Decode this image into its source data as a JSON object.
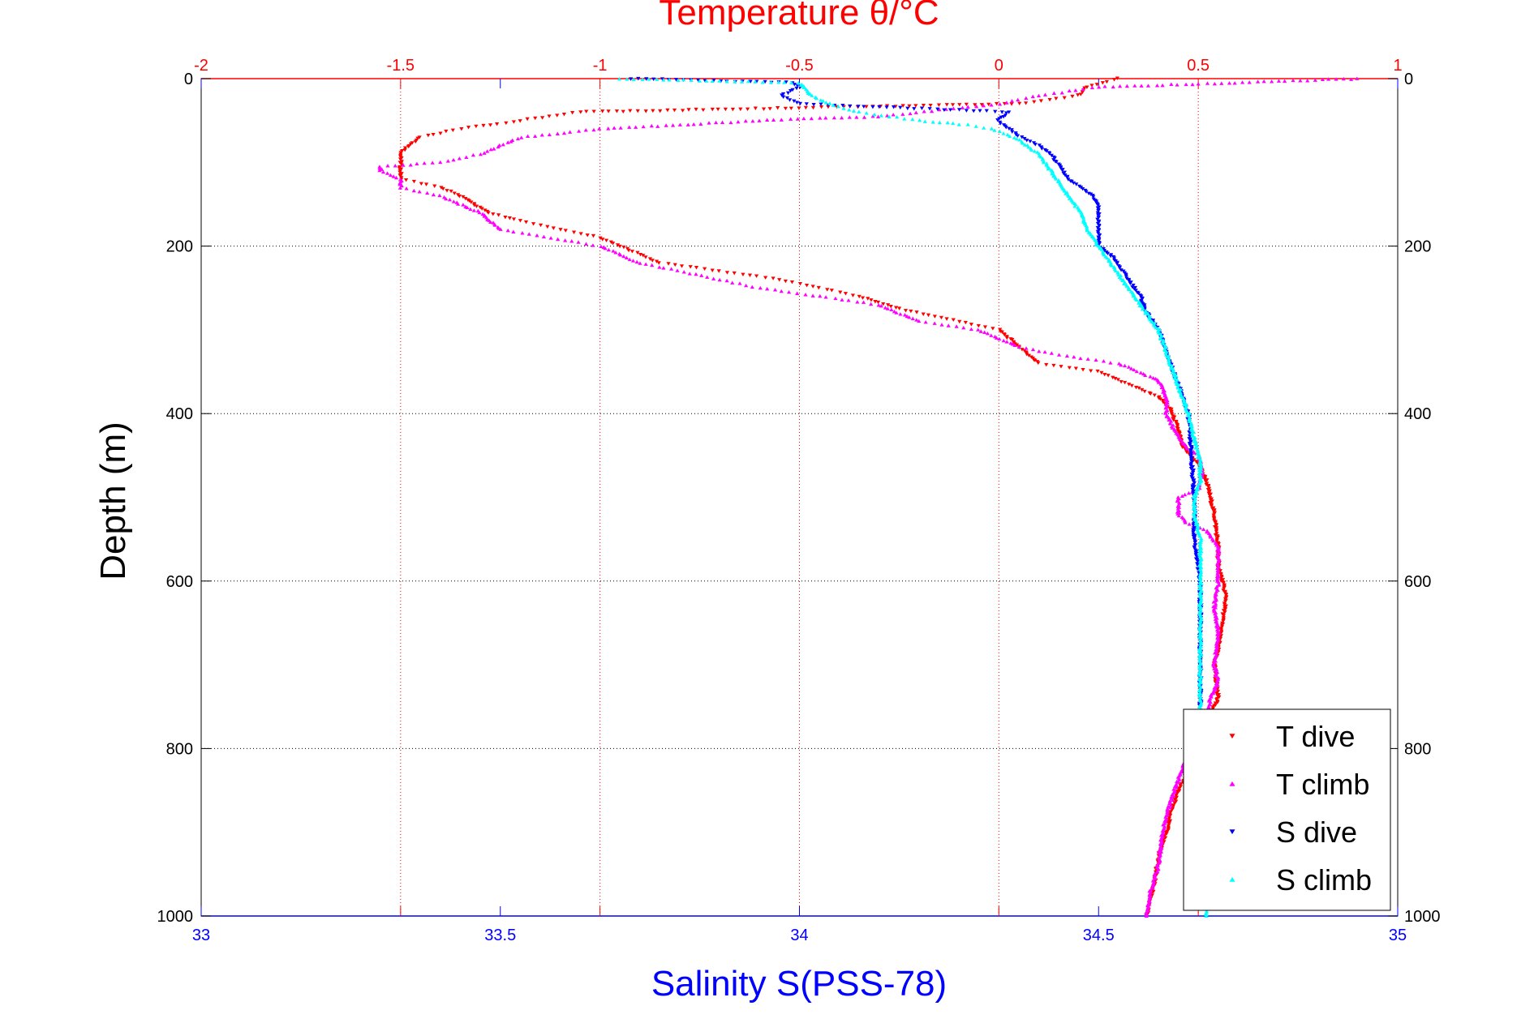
{
  "chart_data": {
    "type": "scatter",
    "title": "",
    "top_axis": {
      "label": "Temperature θ/°C",
      "range": [
        -2,
        1
      ],
      "ticks": [
        -2,
        -1.5,
        -1,
        -0.5,
        0,
        0.5,
        1
      ],
      "tick_labels": [
        "-2",
        "-1.5",
        "-1",
        "-0.5",
        "0",
        "0.5",
        "1"
      ],
      "color": "#ff0000"
    },
    "bottom_axis": {
      "label": "Salinity S(PSS-78)",
      "range": [
        33,
        35
      ],
      "ticks": [
        33,
        33.5,
        34,
        34.5,
        35
      ],
      "tick_labels": [
        "33",
        "33.5",
        "34",
        "34.5",
        "35"
      ],
      "color": "#0000ff"
    },
    "y_axis": {
      "label": "Depth (m)",
      "range": [
        0,
        1000
      ],
      "reversed": true,
      "ticks": [
        0,
        200,
        400,
        600,
        800,
        1000
      ],
      "tick_labels": [
        "0",
        "200",
        "400",
        "600",
        "800",
        "1000"
      ],
      "color": "#000000"
    },
    "grid": true,
    "legend_position": "bottom-right",
    "series": [
      {
        "name": "T dive",
        "axis": "top",
        "color": "#ff0000",
        "marker": "triangle-down",
        "points": [
          [
            0.3,
            0
          ],
          [
            0.22,
            10
          ],
          [
            0.2,
            20
          ],
          [
            0.05,
            30
          ],
          [
            -0.5,
            35
          ],
          [
            -1.05,
            40
          ],
          [
            -1.2,
            50
          ],
          [
            -1.35,
            60
          ],
          [
            -1.45,
            70
          ],
          [
            -1.48,
            80
          ],
          [
            -1.5,
            90
          ],
          [
            -1.5,
            100
          ],
          [
            -1.5,
            110
          ],
          [
            -1.5,
            120
          ],
          [
            -1.45,
            125
          ],
          [
            -1.4,
            130
          ],
          [
            -1.35,
            140
          ],
          [
            -1.28,
            160
          ],
          [
            -1.2,
            170
          ],
          [
            -1.1,
            180
          ],
          [
            -1.0,
            190
          ],
          [
            -0.95,
            200
          ],
          [
            -0.9,
            210
          ],
          [
            -0.85,
            220
          ],
          [
            -0.7,
            230
          ],
          [
            -0.55,
            240
          ],
          [
            -0.45,
            250
          ],
          [
            -0.35,
            260
          ],
          [
            -0.25,
            275
          ],
          [
            -0.1,
            290
          ],
          [
            0.0,
            300
          ],
          [
            0.05,
            320
          ],
          [
            0.1,
            340
          ],
          [
            0.25,
            350
          ],
          [
            0.3,
            360
          ],
          [
            0.35,
            370
          ],
          [
            0.4,
            380
          ],
          [
            0.43,
            395
          ],
          [
            0.45,
            420
          ],
          [
            0.46,
            440
          ],
          [
            0.5,
            460
          ],
          [
            0.52,
            480
          ],
          [
            0.53,
            500
          ],
          [
            0.54,
            520
          ],
          [
            0.55,
            560
          ],
          [
            0.55,
            580
          ],
          [
            0.56,
            600
          ],
          [
            0.57,
            620
          ],
          [
            0.56,
            650
          ],
          [
            0.55,
            680
          ],
          [
            0.54,
            700
          ],
          [
            0.55,
            740
          ],
          [
            0.53,
            760
          ],
          [
            0.5,
            800
          ],
          [
            0.45,
            850
          ],
          [
            0.43,
            880
          ],
          [
            0.42,
            900
          ],
          [
            0.4,
            930
          ],
          [
            0.39,
            960
          ],
          [
            0.37,
            1000
          ]
        ]
      },
      {
        "name": "T climb",
        "axis": "top",
        "color": "#ff00ff",
        "marker": "triangle-up",
        "points": [
          [
            0.9,
            0
          ],
          [
            0.25,
            10
          ],
          [
            0.1,
            20
          ],
          [
            0.0,
            30
          ],
          [
            -0.3,
            45
          ],
          [
            -0.6,
            50
          ],
          [
            -1.0,
            60
          ],
          [
            -1.2,
            70
          ],
          [
            -1.25,
            80
          ],
          [
            -1.3,
            90
          ],
          [
            -1.4,
            100
          ],
          [
            -1.55,
            105
          ],
          [
            -1.55,
            110
          ],
          [
            -1.5,
            120
          ],
          [
            -1.5,
            130
          ],
          [
            -1.4,
            140
          ],
          [
            -1.3,
            160
          ],
          [
            -1.25,
            180
          ],
          [
            -1.0,
            200
          ],
          [
            -0.9,
            220
          ],
          [
            -0.7,
            240
          ],
          [
            -0.6,
            250
          ],
          [
            -0.45,
            260
          ],
          [
            -0.3,
            270
          ],
          [
            -0.2,
            290
          ],
          [
            -0.05,
            300
          ],
          [
            0.05,
            320
          ],
          [
            0.15,
            330
          ],
          [
            0.3,
            340
          ],
          [
            0.4,
            360
          ],
          [
            0.42,
            380
          ],
          [
            0.42,
            400
          ],
          [
            0.44,
            420
          ],
          [
            0.47,
            440
          ],
          [
            0.5,
            450
          ],
          [
            0.51,
            470
          ],
          [
            0.5,
            490
          ],
          [
            0.45,
            500
          ],
          [
            0.45,
            520
          ],
          [
            0.47,
            530
          ],
          [
            0.52,
            540
          ],
          [
            0.55,
            560
          ],
          [
            0.55,
            600
          ],
          [
            0.54,
            630
          ],
          [
            0.55,
            660
          ],
          [
            0.54,
            700
          ],
          [
            0.55,
            720
          ],
          [
            0.53,
            740
          ],
          [
            0.52,
            760
          ],
          [
            0.48,
            800
          ],
          [
            0.44,
            850
          ],
          [
            0.42,
            880
          ],
          [
            0.41,
            900
          ],
          [
            0.4,
            940
          ],
          [
            0.38,
            970
          ],
          [
            0.37,
            1000
          ]
        ]
      },
      {
        "name": "S dive",
        "axis": "bottom",
        "color": "#0000ff",
        "marker": "triangle-down",
        "points": [
          [
            33.72,
            0
          ],
          [
            33.99,
            5
          ],
          [
            34.0,
            10
          ],
          [
            33.97,
            20
          ],
          [
            34.0,
            30
          ],
          [
            34.35,
            40
          ],
          [
            34.33,
            50
          ],
          [
            34.35,
            60
          ],
          [
            34.37,
            70
          ],
          [
            34.4,
            80
          ],
          [
            34.42,
            90
          ],
          [
            34.43,
            100
          ],
          [
            34.44,
            110
          ],
          [
            34.45,
            120
          ],
          [
            34.47,
            130
          ],
          [
            34.49,
            140
          ],
          [
            34.5,
            150
          ],
          [
            34.5,
            160
          ],
          [
            34.5,
            170
          ],
          [
            34.5,
            180
          ],
          [
            34.5,
            200
          ],
          [
            34.52,
            210
          ],
          [
            34.53,
            220
          ],
          [
            34.54,
            230
          ],
          [
            34.55,
            240
          ],
          [
            34.56,
            250
          ],
          [
            34.57,
            260
          ],
          [
            34.58,
            280
          ],
          [
            34.6,
            300
          ],
          [
            34.61,
            320
          ],
          [
            34.62,
            340
          ],
          [
            34.63,
            360
          ],
          [
            34.64,
            380
          ],
          [
            34.65,
            400
          ],
          [
            34.655,
            450
          ],
          [
            34.66,
            500
          ],
          [
            34.66,
            550
          ],
          [
            34.67,
            600
          ],
          [
            34.67,
            650
          ],
          [
            34.67,
            700
          ],
          [
            34.67,
            750
          ]
        ]
      },
      {
        "name": "S climb",
        "axis": "bottom",
        "color": "#00ffff",
        "marker": "triangle-up",
        "points": [
          [
            33.7,
            0
          ],
          [
            34.0,
            5
          ],
          [
            34.02,
            20
          ],
          [
            34.05,
            30
          ],
          [
            34.1,
            40
          ],
          [
            34.15,
            45
          ],
          [
            34.2,
            50
          ],
          [
            34.28,
            55
          ],
          [
            34.32,
            60
          ],
          [
            34.36,
            70
          ],
          [
            34.38,
            80
          ],
          [
            34.4,
            90
          ],
          [
            34.41,
            100
          ],
          [
            34.43,
            120
          ],
          [
            34.45,
            140
          ],
          [
            34.47,
            160
          ],
          [
            34.48,
            180
          ],
          [
            34.5,
            200
          ],
          [
            34.52,
            220
          ],
          [
            34.54,
            240
          ],
          [
            34.56,
            260
          ],
          [
            34.58,
            280
          ],
          [
            34.6,
            300
          ],
          [
            34.61,
            320
          ],
          [
            34.62,
            340
          ],
          [
            34.63,
            360
          ],
          [
            34.64,
            380
          ],
          [
            34.65,
            400
          ],
          [
            34.66,
            430
          ],
          [
            34.67,
            460
          ],
          [
            34.67,
            480
          ],
          [
            34.66,
            500
          ],
          [
            34.66,
            520
          ],
          [
            34.67,
            550
          ],
          [
            34.67,
            600
          ],
          [
            34.67,
            650
          ],
          [
            34.67,
            700
          ],
          [
            34.67,
            750
          ],
          [
            34.675,
            800
          ],
          [
            34.675,
            850
          ],
          [
            34.68,
            900
          ],
          [
            34.68,
            950
          ],
          [
            34.68,
            1000
          ]
        ]
      }
    ]
  }
}
